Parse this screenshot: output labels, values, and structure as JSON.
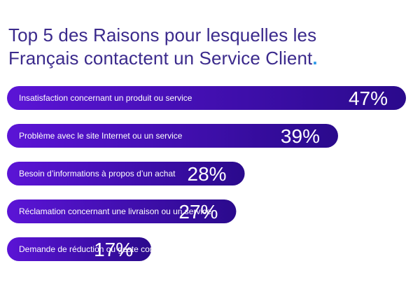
{
  "title": {
    "line1": "Top 5 des Raisons pour lesquelles les",
    "line2": "Français contactent un Service Client",
    "dot": "."
  },
  "colors": {
    "title": "#3b2a8c",
    "accent_dot": "#2f9be8",
    "bar_start": "#5b14d6",
    "bar_end": "#2a0a8c",
    "bar_text": "#ffffff"
  },
  "chart_data": {
    "type": "bar",
    "orientation": "horizontal",
    "title": "Top 5 des Raisons pour lesquelles les Français contactent un Service Client.",
    "categories": [
      "Insatisfaction concernant un produit ou service",
      "Problème avec le site Internet ou un service",
      "Besoin d’informations à propos d’un achat",
      "Réclamation concernant une livraison ou un service",
      "Demande de réduction ou geste commercial"
    ],
    "values": [
      47,
      39,
      28,
      27,
      17
    ],
    "value_labels": [
      "47%",
      "39%",
      "28%",
      "27%",
      "17%"
    ],
    "unit": "%",
    "grid": false,
    "legend": "none"
  }
}
